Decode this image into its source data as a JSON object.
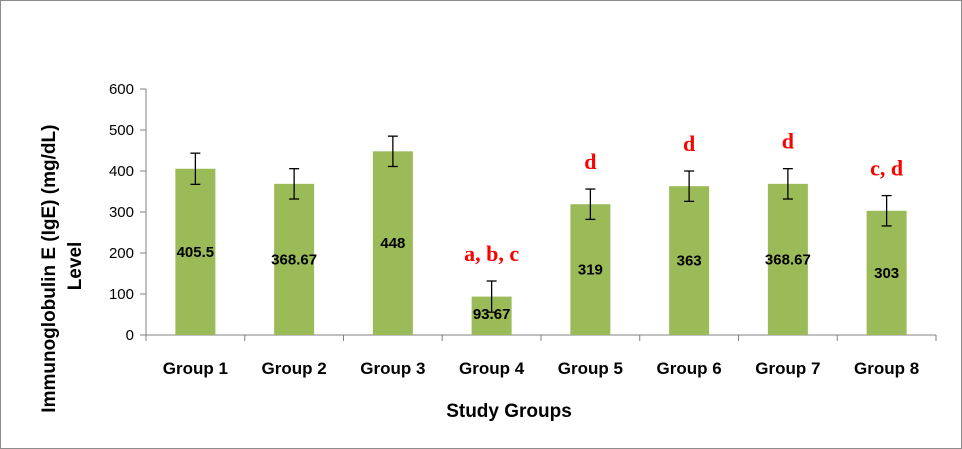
{
  "chart_data": {
    "type": "bar",
    "categories": [
      "Group 1",
      "Group 2",
      "Group 3",
      "Group 4",
      "Group 5",
      "Group 6",
      "Group 7",
      "Group 8"
    ],
    "series": [
      {
        "values": [
          405.5,
          368.67,
          448,
          93.67,
          319,
          363,
          368.67,
          303
        ],
        "error": [
          38,
          37,
          37,
          38,
          37,
          37,
          37,
          37
        ],
        "color": "#9bbb59"
      }
    ],
    "data_labels": [
      "405.5",
      "368.67",
      "448",
      "93.67",
      "319",
      "363",
      "368.67",
      "303"
    ],
    "significance_labels": [
      "",
      "",
      "",
      "a, b, c",
      "d",
      "d",
      "d",
      "c, d"
    ],
    "significance_color": "#ff0000",
    "title": "",
    "xlabel": "Study Groups",
    "ylabel_lines": [
      "Immunoglobulin  E (IgE) (mg/dL)",
      "Level"
    ],
    "ylim": [
      0,
      600
    ],
    "yticks": [
      0,
      100,
      200,
      300,
      400,
      500,
      600
    ],
    "grid": false,
    "legend": "none"
  }
}
